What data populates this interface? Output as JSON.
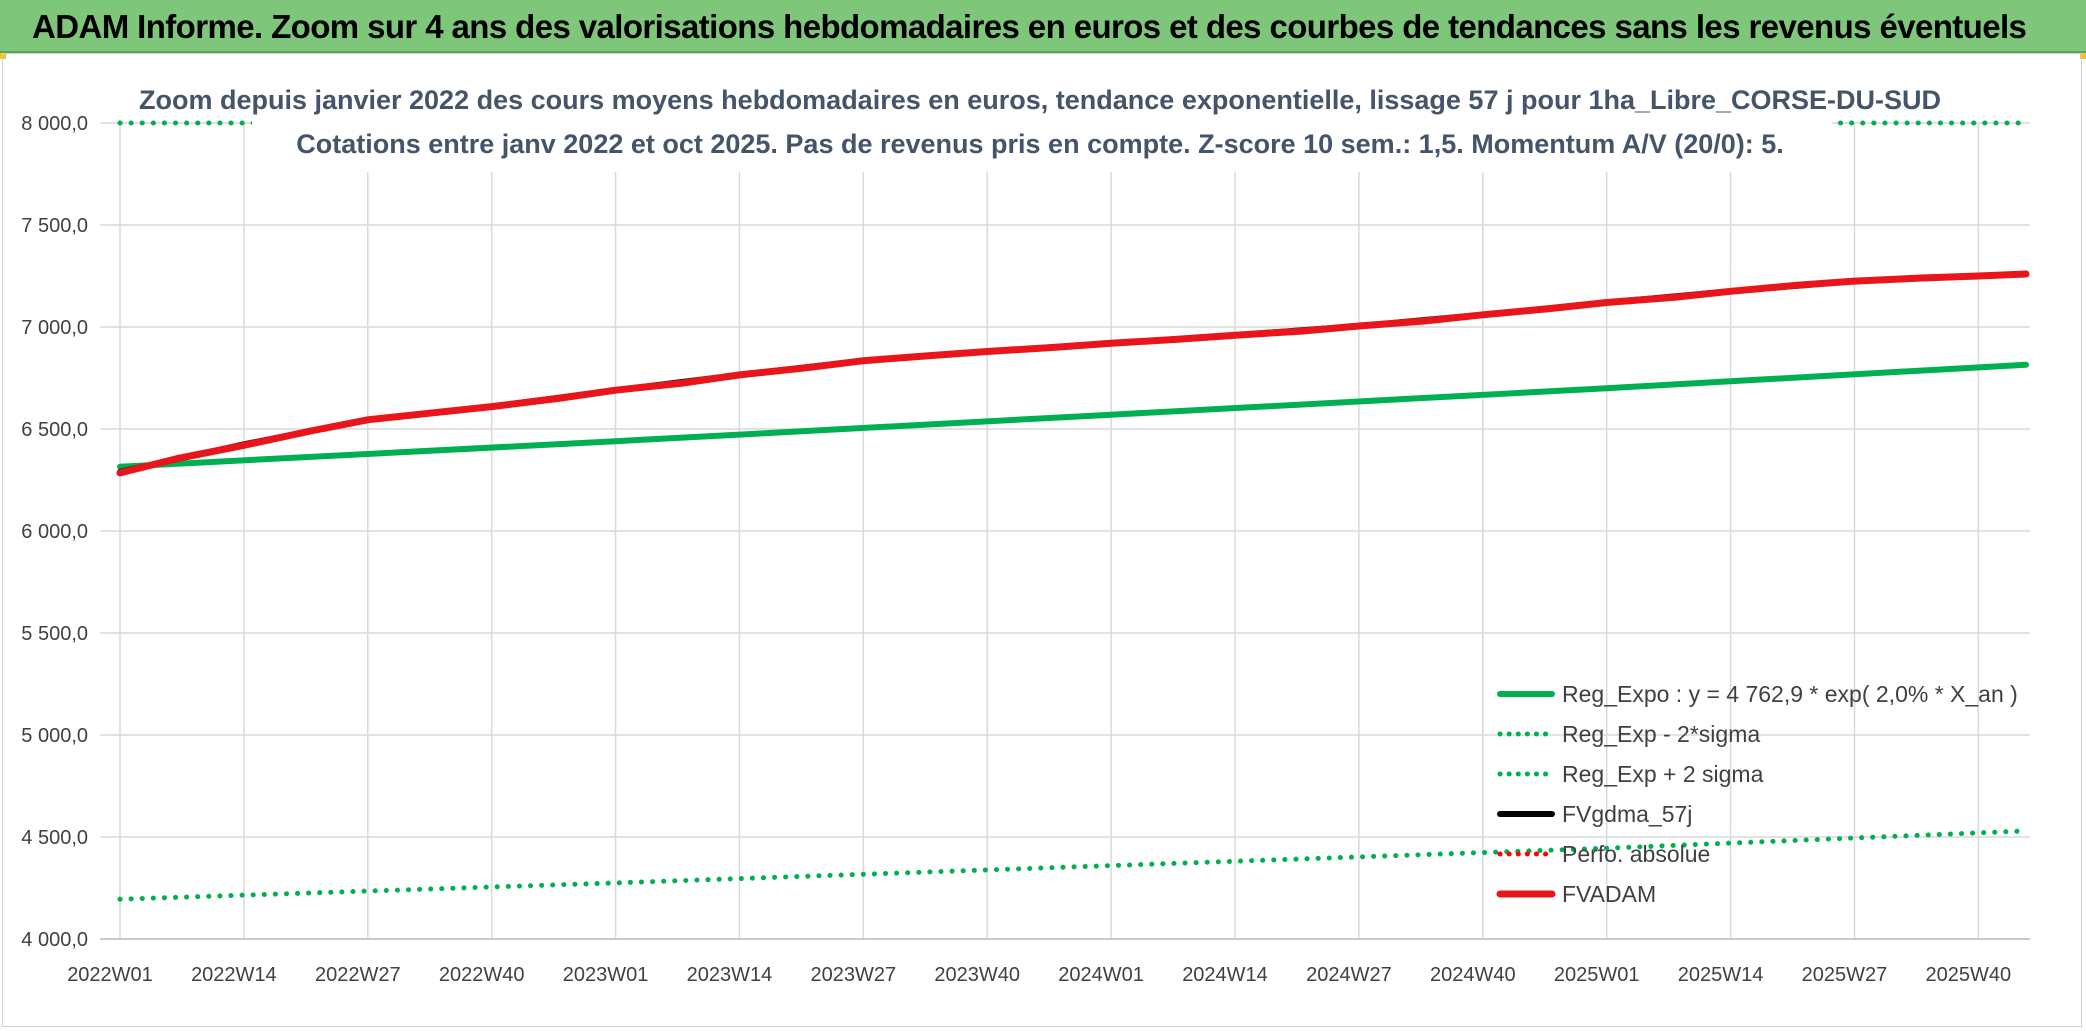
{
  "banner": {
    "title": "ADAM Informe. Zoom sur 4 ans des valorisations hebdomadaires en euros et des courbes de tendances sans les revenus éventuels"
  },
  "colors": {
    "banner_bg": "#7dc67a",
    "reg_expo": "#00b050",
    "fvgdma": "#000000",
    "perfo": "#ff0000",
    "fvadam": "#e8161b",
    "grid": "#d9d9d9"
  },
  "chart_data": {
    "type": "line",
    "title": [
      "Zoom depuis janvier 2022 des cours moyens hebdomadaires en euros, tendance exponentielle, lissage 57 j pour 1ha_Libre_CORSE-DU-SUD",
      "Cotations entre janv 2022 et oct 2025. Pas de revenus pris en compte. Z-score 10 sem.: 1,5. Momentum A/V (20/0): 5."
    ],
    "xlabel": "",
    "ylabel": "",
    "ylim": [
      4000,
      8000
    ],
    "y_ticks": [
      "4 000,0",
      "4 500,0",
      "5 000,0",
      "5 500,0",
      "6 000,0",
      "6 500,0",
      "7 000,0",
      "7 500,0",
      "8 000,0"
    ],
    "y_tick_values": [
      4000,
      4500,
      5000,
      5500,
      6000,
      6500,
      7000,
      7500,
      8000
    ],
    "x_ticks": [
      "2022W01",
      "2022W14",
      "2022W27",
      "2022W40",
      "2023W01",
      "2023W14",
      "2023W27",
      "2023W40",
      "2024W01",
      "2024W14",
      "2024W27",
      "2024W40",
      "2025W01",
      "2025W14",
      "2025W27",
      "2025W40"
    ],
    "x_tick_index": [
      0,
      13,
      26,
      39,
      52,
      65,
      78,
      91,
      104,
      117,
      130,
      143,
      156,
      169,
      182,
      195
    ],
    "x_range": [
      0,
      200
    ],
    "grid": true,
    "legend_position": "bottom-right",
    "series": [
      {
        "name": "Reg_Expo : y = 4 762,9 * exp( 2,0% *  X_an )",
        "style": "solid",
        "color": "#00b050",
        "x": [
          0,
          52,
          104,
          156,
          200
        ],
        "y": [
          6315,
          6440,
          6570,
          6700,
          6815
        ]
      },
      {
        "name": "Reg_Exp - 2*sigma",
        "style": "dotted",
        "color": "#00b050",
        "x": [
          0,
          52,
          104,
          156,
          200
        ],
        "y": [
          4195,
          4275,
          4360,
          4445,
          4530
        ]
      },
      {
        "name": "Reg_Exp + 2 sigma",
        "style": "dotted",
        "color": "#00b050",
        "x": [
          0,
          200
        ],
        "y": [
          8000,
          8000
        ]
      },
      {
        "name": "FVgdma_57j",
        "style": "solid",
        "color": "#000000",
        "x": [
          0,
          13,
          26,
          39,
          52,
          65,
          78,
          91,
          104,
          117,
          130,
          143,
          156,
          169,
          182,
          195,
          200
        ],
        "y": [
          6290,
          6425,
          6545,
          6610,
          6690,
          6765,
          6835,
          6880,
          6920,
          6960,
          7005,
          7060,
          7120,
          7175,
          7225,
          7250,
          7260
        ]
      },
      {
        "name": "Perfo. absolue",
        "style": "dotted",
        "color": "#ff0000",
        "x": [],
        "y": []
      },
      {
        "name": "FVADAM",
        "style": "solid",
        "color": "#e8161b",
        "x": [
          0,
          6,
          13,
          20,
          26,
          33,
          39,
          46,
          52,
          59,
          65,
          72,
          78,
          85,
          91,
          98,
          104,
          111,
          117,
          124,
          130,
          137,
          143,
          150,
          156,
          163,
          169,
          176,
          182,
          189,
          195,
          200
        ],
        "y": [
          6285,
          6355,
          6420,
          6490,
          6545,
          6580,
          6610,
          6650,
          6690,
          6725,
          6765,
          6800,
          6835,
          6860,
          6880,
          6900,
          6920,
          6940,
          6960,
          6980,
          7005,
          7030,
          7060,
          7090,
          7120,
          7145,
          7175,
          7205,
          7225,
          7240,
          7250,
          7260
        ]
      }
    ]
  }
}
